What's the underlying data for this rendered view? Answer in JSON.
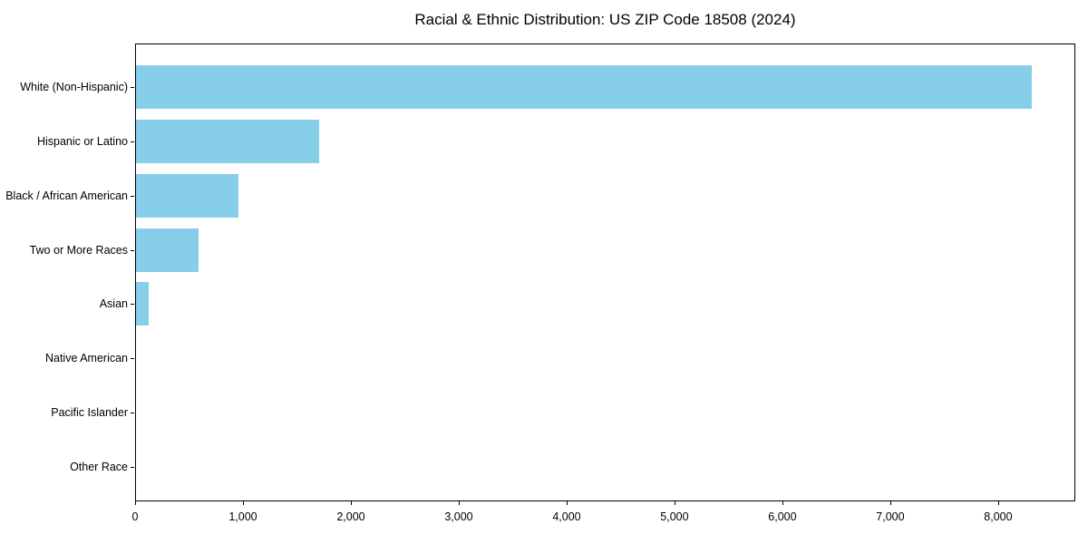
{
  "title": "Racial & Ethnic Distribution: US ZIP Code 18508 (2024)",
  "chart_data": {
    "type": "bar",
    "orientation": "horizontal",
    "title": "Racial & Ethnic Distribution: US ZIP Code 18508 (2024)",
    "categories": [
      "White (Non-Hispanic)",
      "Hispanic or Latino",
      "Black / African American",
      "Two or More Races",
      "Asian",
      "Native American",
      "Pacific Islander",
      "Other Race"
    ],
    "values": [
      8300,
      1700,
      950,
      580,
      120,
      0,
      0,
      0
    ],
    "xlabel": "",
    "ylabel": "",
    "xlim": [
      0,
      8715
    ],
    "x_ticks": [
      0,
      1000,
      2000,
      3000,
      4000,
      5000,
      6000,
      7000,
      8000
    ],
    "x_tick_labels": [
      "0",
      "1,000",
      "2,000",
      "3,000",
      "4,000",
      "5,000",
      "6,000",
      "7,000",
      "8,000"
    ],
    "bar_color": "#87ceeb",
    "frame_color": "#000000",
    "text_color": "#000000",
    "grid": false,
    "legend": null
  }
}
